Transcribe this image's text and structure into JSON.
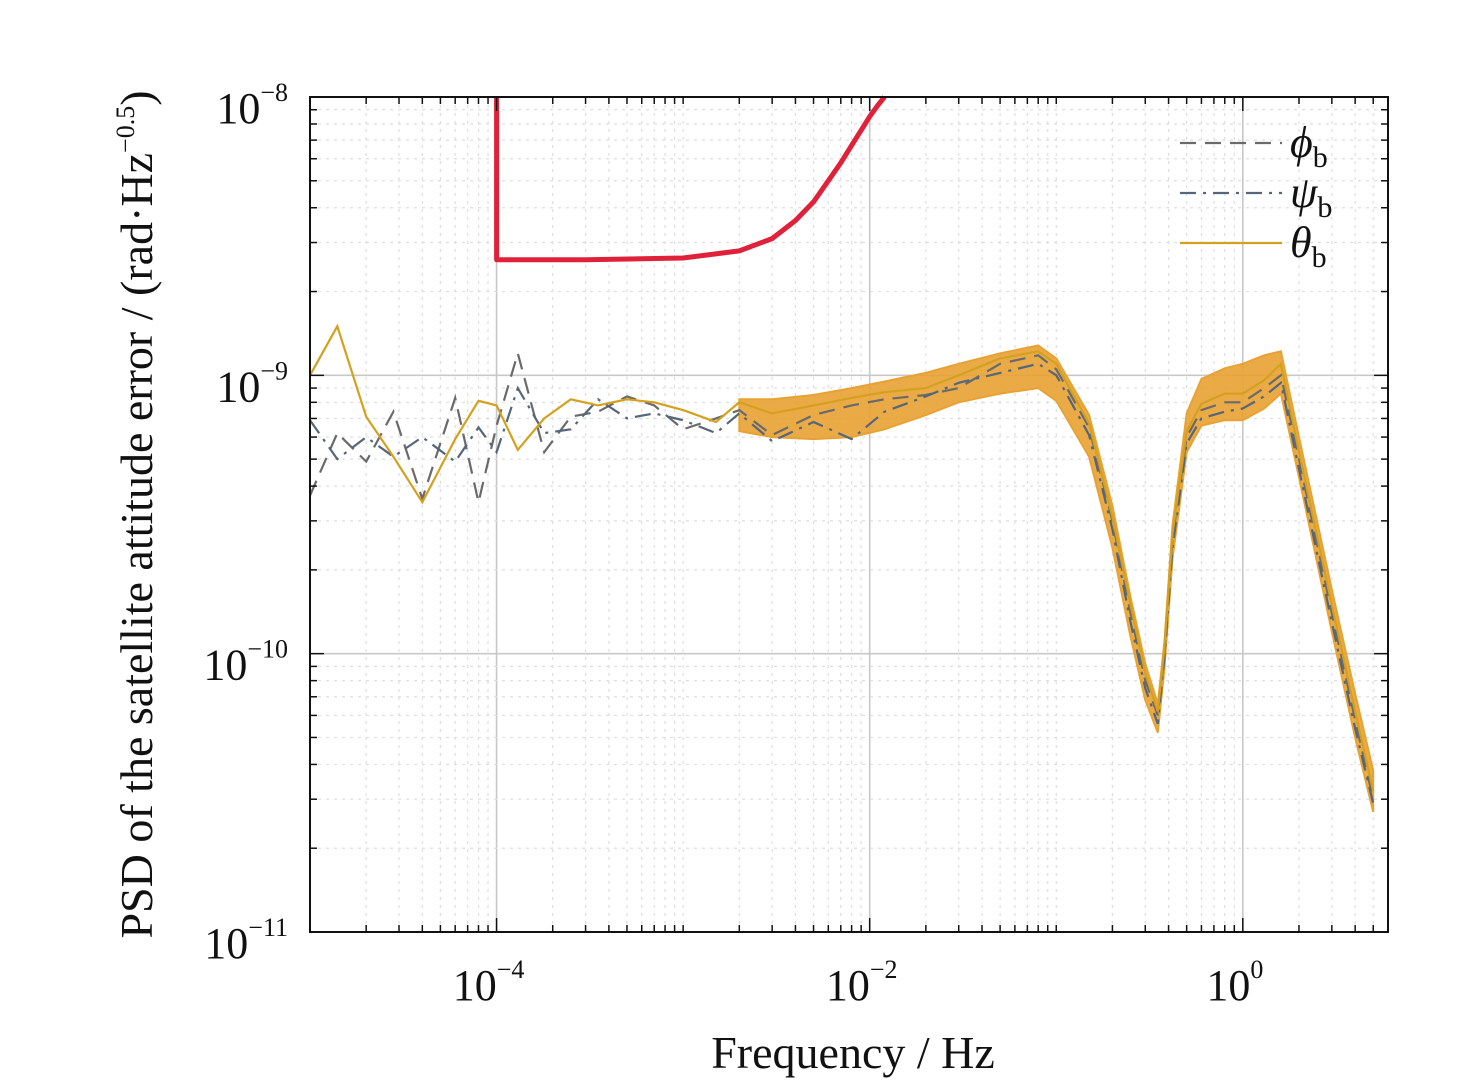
{
  "chart_data": {
    "type": "line",
    "xlabel": "Frequency / Hz",
    "ylabel": "PSD of the satellite attitude error / (rad·Hz",
    "ylabel_exponent": "−0.5",
    "ylabel_close": ")",
    "xscale": "log",
    "yscale": "log",
    "xlim": [
      1e-05,
      6
    ],
    "ylim": [
      1e-11,
      1e-08
    ],
    "grid": true,
    "legend_position": "top-right",
    "x_ticks": [
      {
        "value": 0.0001,
        "base": "10",
        "exp": "−4"
      },
      {
        "value": 0.01,
        "base": "10",
        "exp": "−2"
      },
      {
        "value": 1,
        "base": "10",
        "exp": "0"
      }
    ],
    "y_ticks": [
      {
        "value": 1e-08,
        "base": "10",
        "exp": "−8"
      },
      {
        "value": 1e-09,
        "base": "10",
        "exp": "−9"
      },
      {
        "value": 1e-10,
        "base": "10",
        "exp": "−10"
      },
      {
        "value": 1e-11,
        "base": "10",
        "exp": "−11"
      }
    ],
    "requirement_curve": {
      "color": "#e0213a",
      "x": [
        0.0001,
        0.0001,
        0.0003,
        0.001,
        0.002,
        0.003,
        0.004,
        0.005,
        0.006,
        0.007,
        0.008,
        0.009,
        0.01,
        0.011,
        0.012
      ],
      "y": [
        1e-08,
        2.6e-09,
        2.6e-09,
        2.64e-09,
        2.8e-09,
        3.1e-09,
        3.6e-09,
        4.2e-09,
        5e-09,
        5.8e-09,
        6.7e-09,
        7.6e-09,
        8.5e-09,
        9.3e-09,
        1e-08
      ]
    },
    "series": [
      {
        "name_symbol": "ϕ",
        "name_sub": "b",
        "style": "dashed",
        "color": "#6a6a6a",
        "x": [
          1e-05,
          1.4e-05,
          2e-05,
          2.8e-05,
          4e-05,
          6e-05,
          8e-05,
          0.0001,
          0.00013,
          0.00018,
          0.00025,
          0.00035,
          0.0005,
          0.0007,
          0.001,
          0.0015,
          0.002,
          0.003,
          0.005,
          0.008,
          0.012,
          0.02,
          0.03,
          0.05,
          0.08,
          0.1,
          0.15,
          0.2,
          0.25,
          0.3,
          0.35,
          0.38,
          0.42,
          0.5,
          0.6,
          0.8,
          1,
          1.3,
          1.6,
          2,
          3,
          4,
          5
        ],
        "y": [
          3.7e-10,
          6.2e-10,
          4.9e-10,
          7.4e-10,
          3.6e-10,
          8.3e-10,
          3.5e-10,
          6.6e-10,
          1.2e-09,
          5.3e-10,
          7.1e-10,
          7.4e-10,
          8.4e-10,
          7.8e-10,
          6.4e-10,
          7e-10,
          7.5e-10,
          6.1e-10,
          7.2e-10,
          7.8e-10,
          8.2e-10,
          8.5e-10,
          9e-10,
          1.1e-09,
          1.18e-09,
          1.05e-09,
          6.5e-10,
          3e-10,
          1.4e-10,
          8e-11,
          6e-11,
          1e-10,
          2.6e-10,
          6e-10,
          7.5e-10,
          8e-10,
          8e-10,
          9e-10,
          1e-09,
          5e-10,
          1.4e-10,
          5.8e-11,
          3e-11
        ]
      },
      {
        "name_symbol": "ψ",
        "name_sub": "b",
        "style": "dashdot",
        "color": "#55657c",
        "x": [
          1e-05,
          1.4e-05,
          2e-05,
          2.8e-05,
          4e-05,
          6e-05,
          8e-05,
          0.0001,
          0.00013,
          0.00018,
          0.00025,
          0.00035,
          0.0005,
          0.0007,
          0.001,
          0.0015,
          0.002,
          0.003,
          0.005,
          0.008,
          0.012,
          0.02,
          0.03,
          0.05,
          0.08,
          0.1,
          0.15,
          0.2,
          0.25,
          0.3,
          0.35,
          0.38,
          0.42,
          0.5,
          0.6,
          0.8,
          1,
          1.3,
          1.6,
          2,
          3,
          4,
          5
        ],
        "y": [
          6.9e-10,
          5e-10,
          6e-10,
          5.1e-10,
          6e-10,
          4.9e-10,
          6.5e-10,
          5.3e-10,
          9e-10,
          6.2e-10,
          6.4e-10,
          8.2e-10,
          7e-10,
          7.3e-10,
          6.9e-10,
          6.2e-10,
          7.3e-10,
          5.8e-10,
          6.8e-10,
          5.9e-10,
          7.4e-10,
          8.4e-10,
          9.4e-10,
          1.02e-09,
          1.1e-09,
          1e-09,
          6.1e-10,
          2.8e-10,
          1.3e-10,
          7.5e-11,
          5.6e-11,
          9.6e-11,
          2.4e-10,
          5.7e-10,
          7e-10,
          7.4e-10,
          7.6e-10,
          8.4e-10,
          9.4e-10,
          4.6e-10,
          1.3e-10,
          5.4e-11,
          2.9e-11
        ]
      },
      {
        "name_symbol": "θ",
        "name_sub": "b",
        "style": "solid",
        "color": "#d4a11f",
        "x": [
          1e-05,
          1.4e-05,
          2e-05,
          2.8e-05,
          4e-05,
          6e-05,
          8e-05,
          0.0001,
          0.00013,
          0.00018,
          0.00025,
          0.00035,
          0.0005,
          0.0007,
          0.001,
          0.0015,
          0.002,
          0.003,
          0.005,
          0.008,
          0.012,
          0.02,
          0.03,
          0.05,
          0.08,
          0.1,
          0.15,
          0.2,
          0.25,
          0.3,
          0.35,
          0.38,
          0.42,
          0.5,
          0.6,
          0.8,
          1,
          1.3,
          1.6,
          2,
          3,
          4,
          5
        ],
        "y": [
          1e-09,
          1.5e-09,
          7.1e-10,
          5.1e-10,
          3.5e-10,
          5.9e-10,
          8.1e-10,
          7.8e-10,
          5.4e-10,
          7e-10,
          8.2e-10,
          7.8e-10,
          8.2e-10,
          8e-10,
          7.5e-10,
          6.8e-10,
          8e-10,
          7.3e-10,
          7.8e-10,
          8.3e-10,
          8.7e-10,
          9e-10,
          1e-09,
          1.15e-09,
          1.22e-09,
          1.1e-09,
          6.7e-10,
          3.1e-10,
          1.5e-10,
          8.5e-11,
          6.2e-11,
          1.05e-10,
          2.7e-10,
          6.3e-10,
          7.9e-10,
          8.6e-10,
          8.6e-10,
          9.6e-10,
          1.1e-09,
          5.3e-10,
          1.5e-10,
          6.2e-11,
          3.2e-11
        ]
      }
    ],
    "band": {
      "color": "#e8a233",
      "x": [
        0.002,
        0.003,
        0.005,
        0.008,
        0.012,
        0.02,
        0.03,
        0.05,
        0.08,
        0.1,
        0.15,
        0.2,
        0.25,
        0.3,
        0.35,
        0.38,
        0.42,
        0.5,
        0.6,
        0.8,
        1,
        1.3,
        1.6,
        2,
        3,
        4,
        5
      ],
      "upper": [
        8.2e-10,
        8.2e-10,
        8.5e-10,
        9e-10,
        9.5e-10,
        1.02e-09,
        1.1e-09,
        1.2e-09,
        1.28e-09,
        1.15e-09,
        7.2e-10,
        3.4e-10,
        1.6e-10,
        9.2e-11,
        6.6e-11,
        1.1e-10,
        2.9e-10,
        7.3e-10,
        9.7e-10,
        1.06e-09,
        1.1e-09,
        1.18e-09,
        1.22e-09,
        6e-10,
        1.7e-10,
        7.2e-11,
        3.8e-11
      ],
      "lower": [
        6.3e-10,
        6e-10,
        5.9e-10,
        6e-10,
        6.4e-10,
        7.2e-10,
        8e-10,
        8.6e-10,
        9e-10,
        8.1e-10,
        5.1e-10,
        2.4e-10,
        1.15e-10,
        6.8e-11,
        5.2e-11,
        8.8e-11,
        2.2e-10,
        5.3e-10,
        6.6e-10,
        6.9e-10,
        6.9e-10,
        7.6e-10,
        8.6e-10,
        4.3e-10,
        1.2e-10,
        5e-11,
        2.7e-11
      ]
    }
  }
}
